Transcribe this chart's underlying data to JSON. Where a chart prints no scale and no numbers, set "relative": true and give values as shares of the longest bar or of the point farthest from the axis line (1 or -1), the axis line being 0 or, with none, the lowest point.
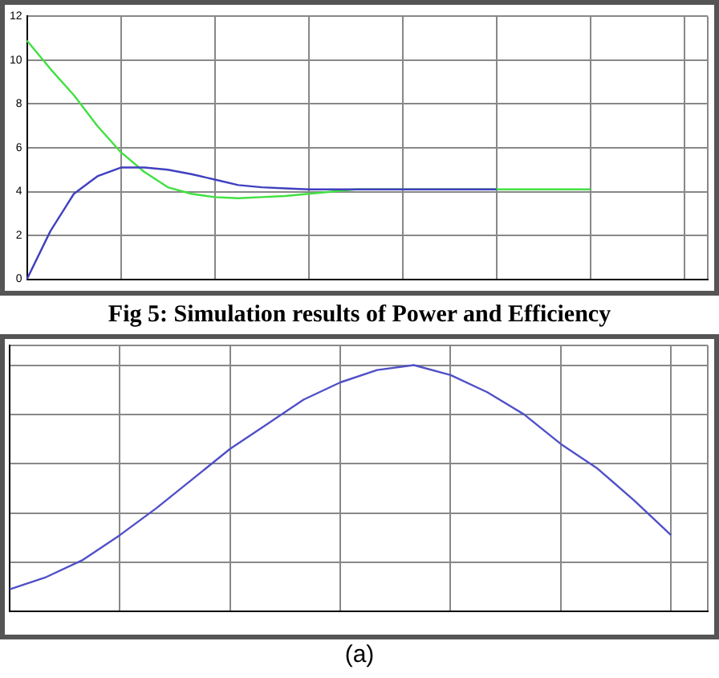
{
  "chart_data": [
    {
      "type": "line",
      "categories": [
        null,
        null,
        null,
        null,
        null,
        null,
        null,
        null,
        null,
        null,
        null,
        null,
        null,
        null,
        null,
        null,
        null,
        null,
        null,
        null,
        null,
        null,
        null,
        null,
        null,
        null,
        null,
        null,
        null,
        null
      ],
      "series": [
        {
          "color": "#4040c0",
          "values": [
            0,
            2.2,
            3.9,
            4.7,
            5.1,
            5.1,
            5.0,
            4.8,
            4.55,
            4.3,
            4.2,
            4.15,
            4.1,
            4.1,
            4.1,
            4.1,
            4.1,
            4.1,
            4.1,
            4.1,
            4.1,
            null,
            null,
            null,
            null,
            null,
            null,
            null,
            null,
            null
          ]
        },
        {
          "color": "#40e040",
          "values": [
            10.9,
            9.6,
            8.4,
            7.0,
            5.8,
            4.9,
            4.2,
            3.9,
            3.75,
            3.7,
            3.75,
            3.8,
            3.9,
            4.0,
            4.1,
            4.1,
            4.1,
            4.1,
            4.1,
            4.1,
            4.1,
            4.1,
            4.1,
            4.1,
            4.1,
            null,
            null,
            null,
            null,
            null
          ]
        }
      ],
      "ylim": [
        0,
        12
      ],
      "yticks": [
        0,
        2,
        4,
        6,
        8,
        10,
        12
      ],
      "grid": true,
      "tick_labels": "y",
      "marker": "none",
      "line_style": "solid",
      "annotations": [
        "Fig 5: Simulation results of Power and Efficiency"
      ]
    },
    {
      "type": "line",
      "relative": true,
      "categories": [
        null,
        null,
        null,
        null,
        null,
        null,
        null,
        null,
        null,
        null,
        null,
        null,
        null,
        null,
        null,
        null,
        null,
        null,
        null,
        null
      ],
      "series": [
        {
          "color": "#5050c8",
          "values": [
            0.09,
            0.14,
            0.21,
            0.31,
            0.42,
            0.54,
            0.66,
            0.76,
            0.86,
            0.93,
            0.98,
            1,
            0.96,
            0.89,
            0.8,
            0.68,
            0.58,
            0.45,
            0.31,
            null
          ]
        }
      ],
      "grid": true,
      "marker": "none",
      "line_style": "solid",
      "annotations": [
        "(a)"
      ]
    }
  ]
}
